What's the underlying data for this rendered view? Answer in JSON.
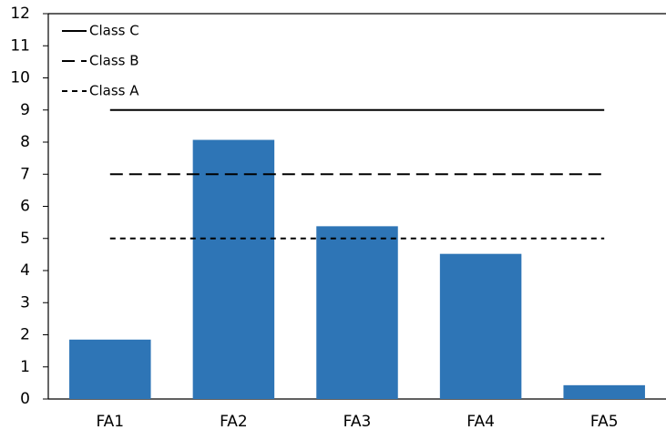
{
  "chart_data": {
    "type": "bar",
    "categories": [
      "FA1",
      "FA2",
      "FA3",
      "FA4",
      "FA5"
    ],
    "values": [
      1.85,
      8.07,
      5.38,
      4.52,
      0.43
    ],
    "color": "#2e75b6",
    "ylim": [
      0,
      12
    ],
    "yticks": [
      0,
      1,
      2,
      3,
      4,
      5,
      6,
      7,
      8,
      9,
      10,
      11,
      12
    ],
    "grid": false,
    "legend": "top-left",
    "reference_lines": [
      {
        "name": "Class C",
        "value": 9,
        "dash": "solid",
        "color": "#000000"
      },
      {
        "name": "Class B",
        "value": 7,
        "dash": "long",
        "color": "#000000"
      },
      {
        "name": "Class A",
        "value": 5,
        "dash": "short",
        "color": "#000000"
      }
    ]
  }
}
